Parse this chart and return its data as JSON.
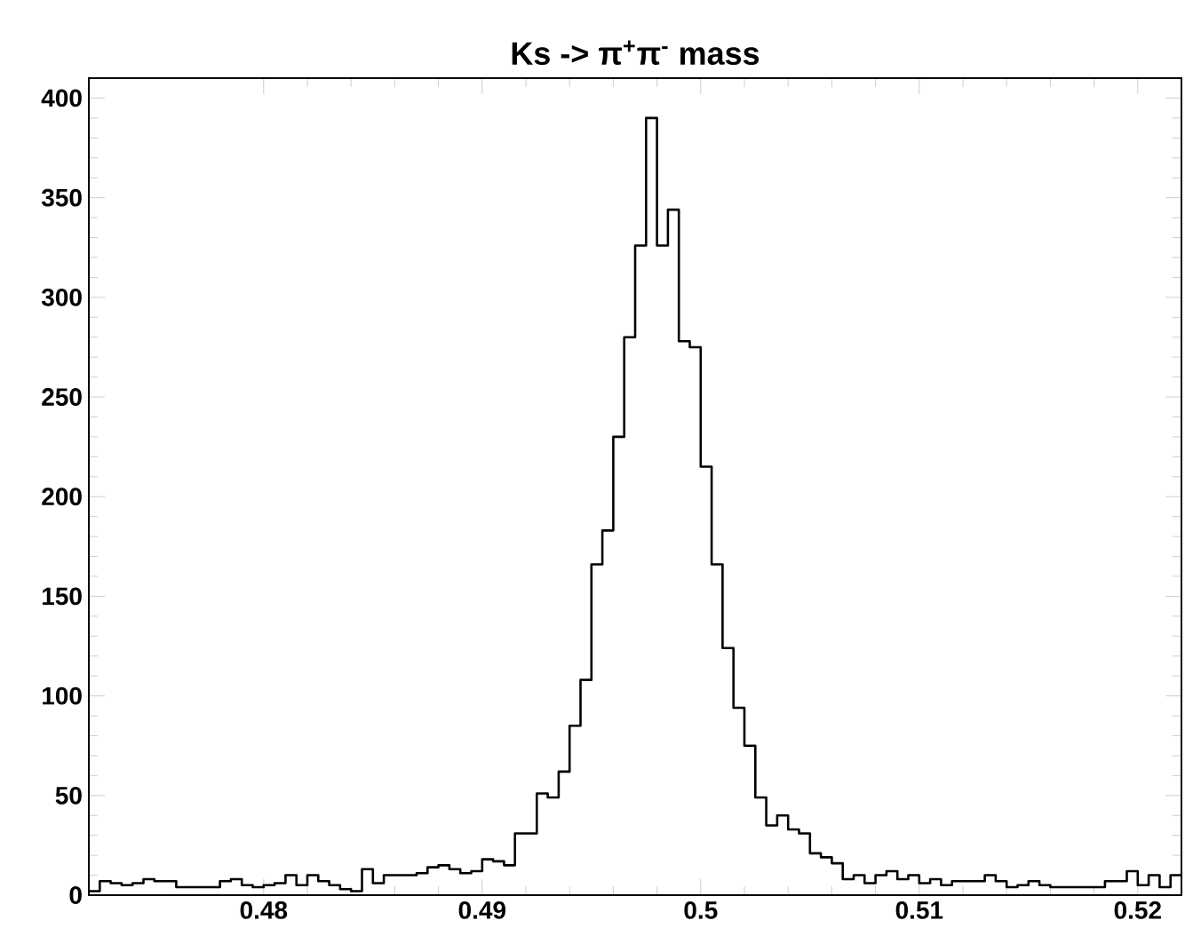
{
  "chart_data": {
    "type": "histogram",
    "title": "Ks -> π$^{+}$π$^{-}$ mass",
    "color": "#000000",
    "bins": [
      0.472,
      0.4725,
      0.473,
      0.4735,
      0.474,
      0.4745,
      0.475,
      0.4755,
      0.476,
      0.4765,
      0.477,
      0.4775,
      0.478,
      0.4785,
      0.479,
      0.4795,
      0.48,
      0.4805,
      0.481,
      0.4815,
      0.482,
      0.4825,
      0.483,
      0.4835,
      0.484,
      0.4845,
      0.485,
      0.4855,
      0.486,
      0.4865,
      0.487,
      0.4875,
      0.488,
      0.4885,
      0.489,
      0.4895,
      0.49,
      0.4905,
      0.491,
      0.4915,
      0.492,
      0.4925,
      0.493,
      0.4935,
      0.494,
      0.4945,
      0.495,
      0.4955,
      0.496,
      0.4965,
      0.497,
      0.4975,
      0.498,
      0.4985,
      0.499,
      0.4995,
      0.5,
      0.5005,
      0.501,
      0.5015,
      0.502,
      0.5025,
      0.503,
      0.5035,
      0.504,
      0.5045,
      0.505,
      0.5055,
      0.506,
      0.5065,
      0.507,
      0.5075,
      0.508,
      0.5085,
      0.509,
      0.5095,
      0.51,
      0.5105,
      0.511,
      0.5115,
      0.512,
      0.5125,
      0.513,
      0.5135,
      0.514,
      0.5145,
      0.515,
      0.5155,
      0.516,
      0.5165,
      0.517,
      0.5175,
      0.518,
      0.5185,
      0.519,
      0.5195,
      0.52,
      0.5205,
      0.521,
      0.5215,
      0.522
    ],
    "values": [
      2,
      7,
      6,
      5,
      6,
      8,
      7,
      7,
      4,
      4,
      4,
      4,
      7,
      8,
      5,
      4,
      5,
      6,
      10,
      5,
      10,
      7,
      5,
      3,
      2,
      13,
      6,
      10,
      10,
      10,
      11,
      14,
      15,
      13,
      11,
      12,
      18,
      17,
      15,
      31,
      31,
      51,
      49,
      62,
      85,
      108,
      166,
      183,
      230,
      280,
      326,
      390,
      326,
      344,
      278,
      275,
      215,
      166,
      124,
      94,
      75,
      49,
      35,
      40,
      33,
      31,
      21,
      19,
      16,
      8,
      10,
      6,
      10,
      12,
      8,
      10,
      6,
      8,
      5,
      7,
      7,
      7,
      10,
      7,
      4,
      5,
      7,
      5,
      4,
      4,
      4,
      4,
      4,
      7,
      7,
      12,
      5,
      10,
      4,
      10
    ],
    "xlim": [
      0.472,
      0.522
    ],
    "ylim": [
      0,
      410
    ],
    "xticks": [
      0.48,
      0.49,
      0.5,
      0.51,
      0.52
    ],
    "yticks": [
      0,
      50,
      100,
      150,
      200,
      250,
      300,
      350,
      400
    ]
  }
}
